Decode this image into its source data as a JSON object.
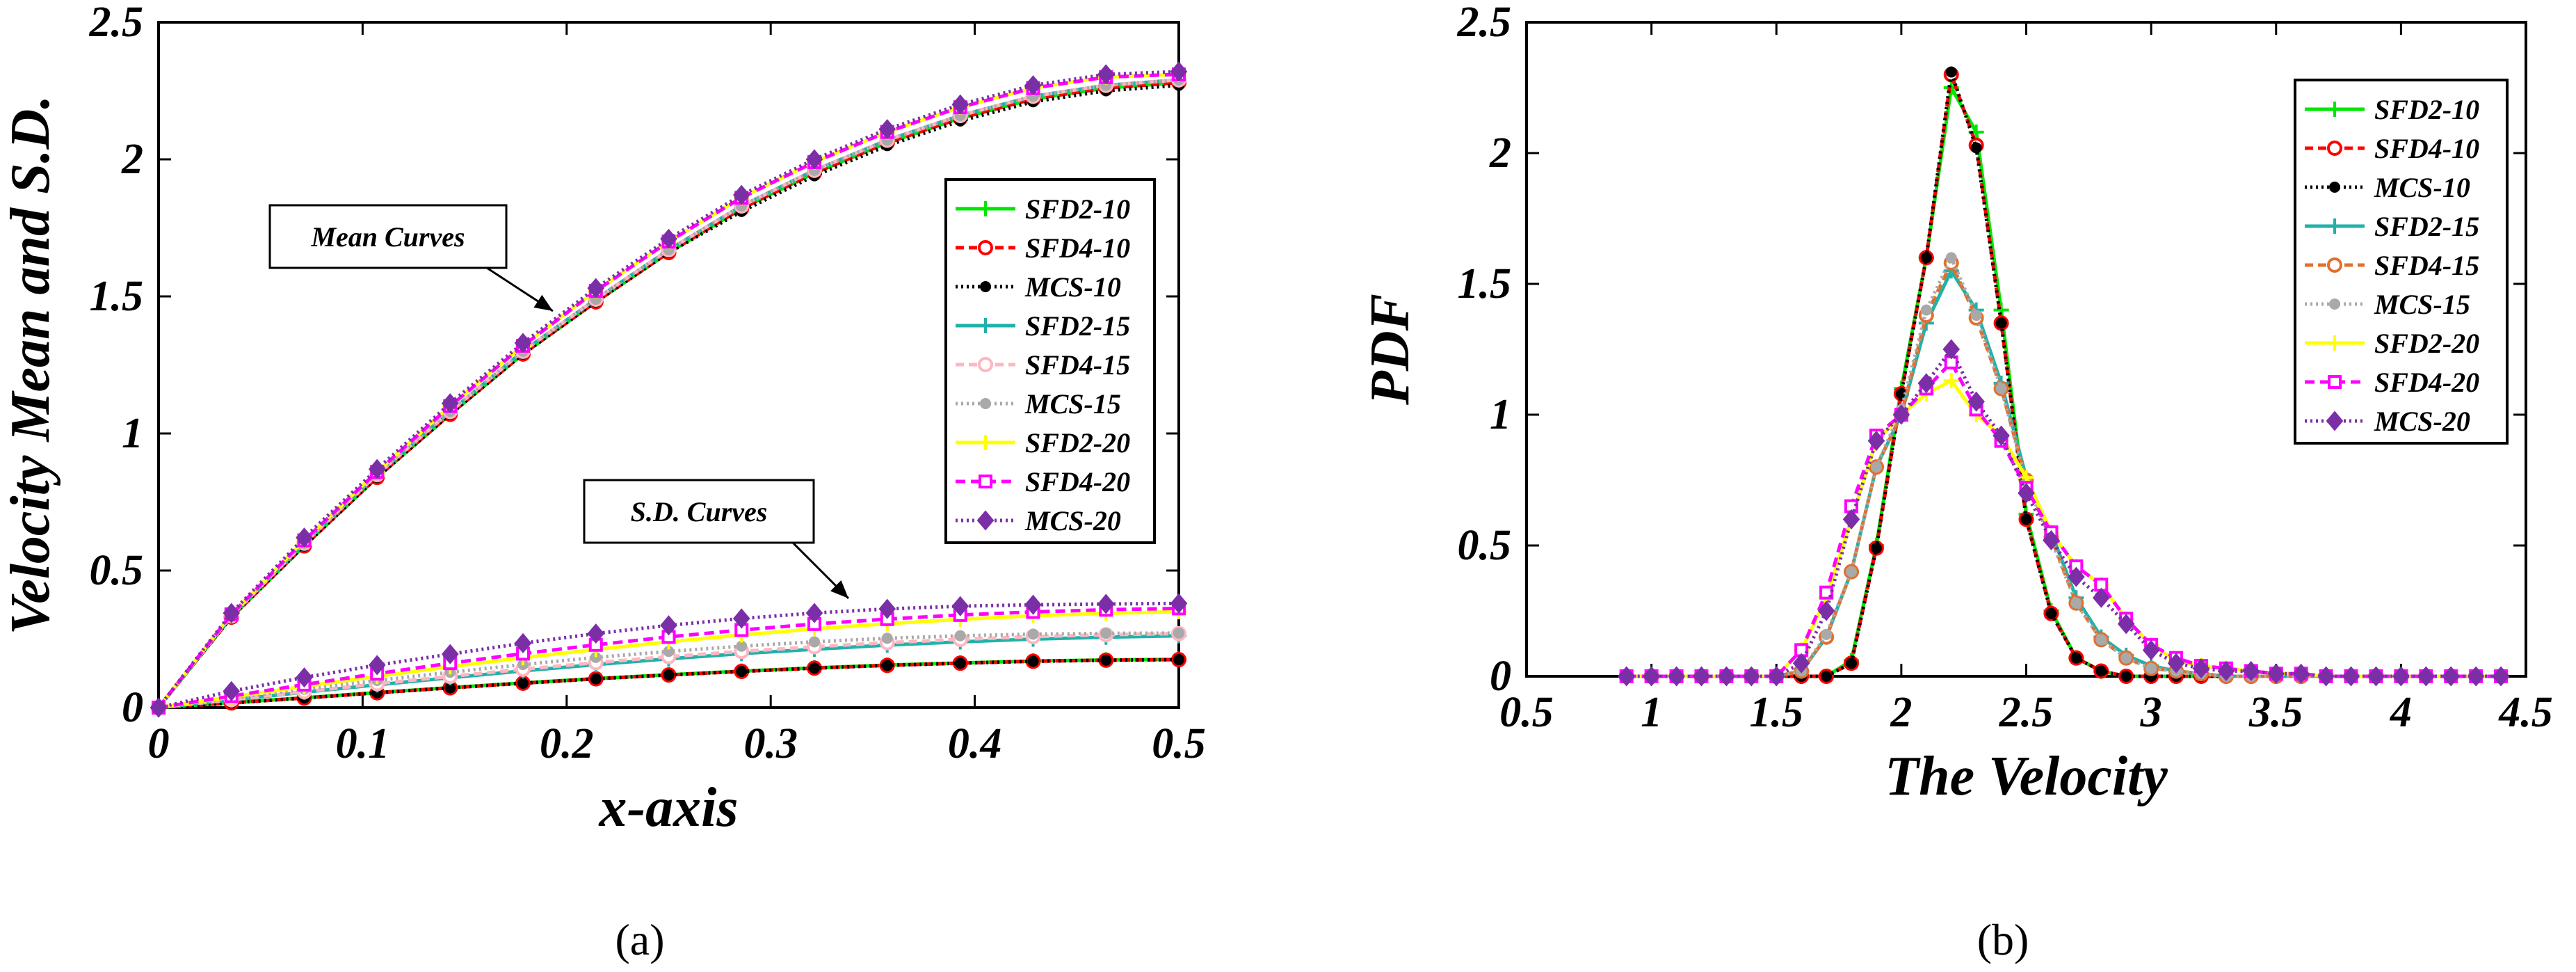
{
  "chart_data": [
    {
      "panel": "a",
      "type": "line",
      "caption": "(a)",
      "xlabel": "x-axis",
      "ylabel": "Velocity Mean and S.D.",
      "xlim": [
        0,
        0.5
      ],
      "ylim": [
        0,
        2.5
      ],
      "xticks": [
        "0",
        "0.1",
        "0.2",
        "0.3",
        "0.4",
        "0.5"
      ],
      "yticks": [
        "0",
        "0.5",
        "1",
        "1.5",
        "2",
        "2.5"
      ],
      "x": [
        0,
        0.0357,
        0.0714,
        0.1071,
        0.1429,
        0.1786,
        0.2143,
        0.25,
        0.2857,
        0.3214,
        0.3571,
        0.3929,
        0.4286,
        0.4643,
        0.5
      ],
      "legend_position": "right",
      "annotations": [
        {
          "text": "Mean Curves",
          "target": "mean"
        },
        {
          "text": "S.D. Curves",
          "target": "sd"
        }
      ],
      "series": [
        {
          "name": "SFD2-10",
          "color": "#00e600",
          "dash": "",
          "marker": "plus",
          "mean": [
            0,
            0.33,
            0.59,
            0.84,
            1.07,
            1.29,
            1.48,
            1.66,
            1.82,
            1.95,
            2.06,
            2.15,
            2.22,
            2.26,
            2.28
          ],
          "sd": [
            0,
            0.018,
            0.036,
            0.055,
            0.073,
            0.09,
            0.106,
            0.12,
            0.133,
            0.145,
            0.155,
            0.163,
            0.17,
            0.174,
            0.176
          ]
        },
        {
          "name": "SFD4-10",
          "color": "#ff0000",
          "dash": "12,7",
          "marker": "circle",
          "mean": [
            0,
            0.33,
            0.59,
            0.84,
            1.07,
            1.29,
            1.48,
            1.66,
            1.82,
            1.95,
            2.06,
            2.15,
            2.22,
            2.26,
            2.28
          ],
          "sd": [
            0,
            0.017,
            0.035,
            0.054,
            0.072,
            0.089,
            0.105,
            0.119,
            0.132,
            0.144,
            0.154,
            0.162,
            0.169,
            0.173,
            0.175
          ]
        },
        {
          "name": "MCS-10",
          "color": "#000000",
          "dash": "3,5",
          "marker": "dot",
          "mean": [
            0,
            0.33,
            0.59,
            0.84,
            1.07,
            1.29,
            1.48,
            1.66,
            1.81,
            1.94,
            2.05,
            2.14,
            2.21,
            2.25,
            2.27
          ],
          "sd": [
            0,
            0.017,
            0.035,
            0.054,
            0.072,
            0.089,
            0.105,
            0.119,
            0.132,
            0.144,
            0.154,
            0.162,
            0.169,
            0.173,
            0.175
          ]
        },
        {
          "name": "SFD2-15",
          "color": "#20b2aa",
          "dash": "",
          "marker": "plus",
          "mean": [
            0,
            0.335,
            0.6,
            0.85,
            1.08,
            1.3,
            1.49,
            1.67,
            1.83,
            1.96,
            2.07,
            2.16,
            2.23,
            2.27,
            2.29
          ],
          "sd": [
            0,
            0.028,
            0.056,
            0.083,
            0.109,
            0.134,
            0.157,
            0.178,
            0.197,
            0.213,
            0.228,
            0.24,
            0.25,
            0.257,
            0.262
          ]
        },
        {
          "name": "SFD4-15",
          "color": "#ffb6c1",
          "dash": "12,7",
          "marker": "circle",
          "mean": [
            0,
            0.335,
            0.6,
            0.85,
            1.08,
            1.3,
            1.49,
            1.67,
            1.83,
            1.96,
            2.07,
            2.16,
            2.23,
            2.27,
            2.29
          ],
          "sd": [
            0,
            0.029,
            0.058,
            0.087,
            0.114,
            0.14,
            0.164,
            0.186,
            0.205,
            0.222,
            0.237,
            0.249,
            0.259,
            0.266,
            0.27
          ]
        },
        {
          "name": "MCS-15",
          "color": "#a9a9a9",
          "dash": "3,5",
          "marker": "dot",
          "mean": [
            0,
            0.335,
            0.6,
            0.85,
            1.08,
            1.3,
            1.49,
            1.67,
            1.83,
            1.96,
            2.07,
            2.16,
            2.23,
            2.27,
            2.29
          ],
          "sd": [
            0,
            0.034,
            0.067,
            0.099,
            0.129,
            0.157,
            0.183,
            0.205,
            0.224,
            0.24,
            0.253,
            0.262,
            0.268,
            0.271,
            0.272
          ]
        },
        {
          "name": "SFD2-20",
          "color": "#ffff00",
          "dash": "",
          "marker": "plus",
          "mean": [
            0,
            0.34,
            0.61,
            0.86,
            1.1,
            1.32,
            1.52,
            1.7,
            1.86,
            1.99,
            2.1,
            2.19,
            2.26,
            2.3,
            2.31
          ],
          "sd": [
            0,
            0.039,
            0.077,
            0.114,
            0.149,
            0.182,
            0.212,
            0.24,
            0.265,
            0.287,
            0.306,
            0.322,
            0.335,
            0.344,
            0.35
          ]
        },
        {
          "name": "SFD4-20",
          "color": "#ff00ff",
          "dash": "14,8",
          "marker": "square",
          "mean": [
            0,
            0.34,
            0.61,
            0.86,
            1.1,
            1.32,
            1.52,
            1.7,
            1.86,
            1.99,
            2.1,
            2.19,
            2.26,
            2.3,
            2.31
          ],
          "sd": [
            0,
            0.042,
            0.084,
            0.124,
            0.162,
            0.197,
            0.229,
            0.258,
            0.283,
            0.305,
            0.323,
            0.338,
            0.349,
            0.357,
            0.362
          ]
        },
        {
          "name": "MCS-20",
          "color": "#7b2fa7",
          "dash": "3,5",
          "marker": "diamond",
          "mean": [
            0,
            0.345,
            0.62,
            0.87,
            1.11,
            1.33,
            1.53,
            1.71,
            1.87,
            2.0,
            2.11,
            2.2,
            2.27,
            2.31,
            2.32
          ],
          "sd": [
            0,
            0.06,
            0.11,
            0.155,
            0.195,
            0.235,
            0.27,
            0.3,
            0.325,
            0.345,
            0.36,
            0.37,
            0.375,
            0.378,
            0.38
          ]
        }
      ]
    },
    {
      "panel": "b",
      "type": "line",
      "caption": "(b)",
      "xlabel": "The Velocity",
      "ylabel": "PDF",
      "xlim": [
        0.5,
        4.5
      ],
      "ylim": [
        0,
        2.5
      ],
      "xticks": [
        "0.5",
        "1",
        "1.5",
        "2",
        "2.5",
        "3",
        "3.5",
        "4",
        "4.5"
      ],
      "yticks": [
        "0",
        "0.5",
        "1",
        "1.5",
        "2",
        "2.5"
      ],
      "x": [
        0.9,
        1.0,
        1.1,
        1.2,
        1.3,
        1.4,
        1.5,
        1.6,
        1.7,
        1.8,
        1.9,
        2.0,
        2.1,
        2.2,
        2.3,
        2.4,
        2.5,
        2.6,
        2.7,
        2.8,
        2.9,
        3.0,
        3.1,
        3.2,
        3.3,
        3.4,
        3.5,
        3.6,
        3.7,
        3.8,
        3.9,
        4.0,
        4.1,
        4.2,
        4.3,
        4.4
      ],
      "legend_position": "top-right",
      "series": [
        {
          "name": "SFD2-10",
          "color": "#00e600",
          "dash": "",
          "marker": "plus",
          "values": [
            0,
            0,
            0,
            0,
            0,
            0,
            0,
            0,
            0,
            0.06,
            0.5,
            1.1,
            1.6,
            2.25,
            2.08,
            1.4,
            0.62,
            0.25,
            0.07,
            0.02,
            0,
            0,
            0,
            0,
            0,
            0,
            0,
            0,
            0,
            0,
            0,
            0,
            0,
            0,
            0,
            0
          ]
        },
        {
          "name": "SFD4-10",
          "color": "#ff0000",
          "dash": "12,7",
          "marker": "circle",
          "values": [
            0,
            0,
            0,
            0,
            0,
            0,
            0,
            0,
            0,
            0.05,
            0.49,
            1.08,
            1.6,
            2.3,
            2.03,
            1.35,
            0.6,
            0.24,
            0.07,
            0.02,
            0,
            0,
            0,
            0,
            0,
            0,
            0,
            0,
            0,
            0,
            0,
            0,
            0,
            0,
            0,
            0
          ]
        },
        {
          "name": "MCS-10",
          "color": "#000000",
          "dash": "3,5",
          "marker": "dot",
          "values": [
            0,
            0,
            0,
            0,
            0,
            0,
            0,
            0,
            0,
            0.05,
            0.49,
            1.08,
            1.6,
            2.31,
            2.02,
            1.35,
            0.6,
            0.24,
            0.07,
            0.02,
            0,
            0,
            0,
            0,
            0,
            0,
            0,
            0,
            0,
            0,
            0,
            0,
            0,
            0,
            0,
            0
          ]
        },
        {
          "name": "SFD2-15",
          "color": "#20b2aa",
          "dash": "",
          "marker": "plus",
          "values": [
            0,
            0,
            0,
            0,
            0,
            0,
            0,
            0.02,
            0.15,
            0.4,
            0.8,
            1.0,
            1.35,
            1.55,
            1.4,
            1.12,
            0.76,
            0.55,
            0.3,
            0.15,
            0.08,
            0.04,
            0.02,
            0.01,
            0,
            0,
            0,
            0,
            0,
            0,
            0,
            0,
            0,
            0,
            0,
            0
          ]
        },
        {
          "name": "SFD4-15",
          "color": "#e07030",
          "dash": "12,7",
          "marker": "circle",
          "values": [
            0,
            0,
            0,
            0,
            0,
            0,
            0,
            0.02,
            0.15,
            0.4,
            0.8,
            1.0,
            1.38,
            1.58,
            1.37,
            1.1,
            0.75,
            0.53,
            0.28,
            0.14,
            0.07,
            0.03,
            0.02,
            0.01,
            0,
            0,
            0,
            0,
            0,
            0,
            0,
            0,
            0,
            0,
            0,
            0
          ]
        },
        {
          "name": "MCS-15",
          "color": "#a9a9a9",
          "dash": "3,5",
          "marker": "dot",
          "values": [
            0,
            0,
            0,
            0,
            0,
            0,
            0,
            0.02,
            0.16,
            0.4,
            0.8,
            1.02,
            1.4,
            1.6,
            1.38,
            1.1,
            0.74,
            0.52,
            0.28,
            0.14,
            0.07,
            0.03,
            0.02,
            0.01,
            0,
            0,
            0,
            0,
            0,
            0,
            0,
            0,
            0,
            0,
            0,
            0
          ]
        },
        {
          "name": "SFD2-20",
          "color": "#ffff00",
          "dash": "",
          "marker": "plus",
          "values": [
            0,
            0,
            0,
            0,
            0,
            0,
            0,
            0.1,
            0.3,
            0.6,
            0.9,
            1.0,
            1.08,
            1.13,
            1.0,
            0.92,
            0.76,
            0.55,
            0.42,
            0.35,
            0.22,
            0.12,
            0.06,
            0.04,
            0.03,
            0.02,
            0.01,
            0.01,
            0,
            0,
            0,
            0,
            0,
            0,
            0,
            0
          ]
        },
        {
          "name": "SFD4-20",
          "color": "#ff00ff",
          "dash": "14,8",
          "marker": "square",
          "values": [
            0,
            0,
            0,
            0,
            0,
            0,
            0,
            0.1,
            0.32,
            0.65,
            0.92,
            1.0,
            1.1,
            1.2,
            1.02,
            0.9,
            0.72,
            0.55,
            0.42,
            0.35,
            0.22,
            0.12,
            0.07,
            0.04,
            0.03,
            0.02,
            0.01,
            0.01,
            0,
            0,
            0,
            0,
            0,
            0,
            0,
            0
          ]
        },
        {
          "name": "MCS-20",
          "color": "#7b2fa7",
          "dash": "3,5",
          "marker": "diamond",
          "values": [
            0,
            0,
            0,
            0,
            0,
            0,
            0,
            0.05,
            0.25,
            0.6,
            0.9,
            1.0,
            1.12,
            1.25,
            1.05,
            0.92,
            0.7,
            0.52,
            0.38,
            0.3,
            0.2,
            0.1,
            0.05,
            0.03,
            0.02,
            0.02,
            0.01,
            0.01,
            0,
            0,
            0,
            0,
            0,
            0,
            0,
            0
          ]
        }
      ]
    }
  ]
}
